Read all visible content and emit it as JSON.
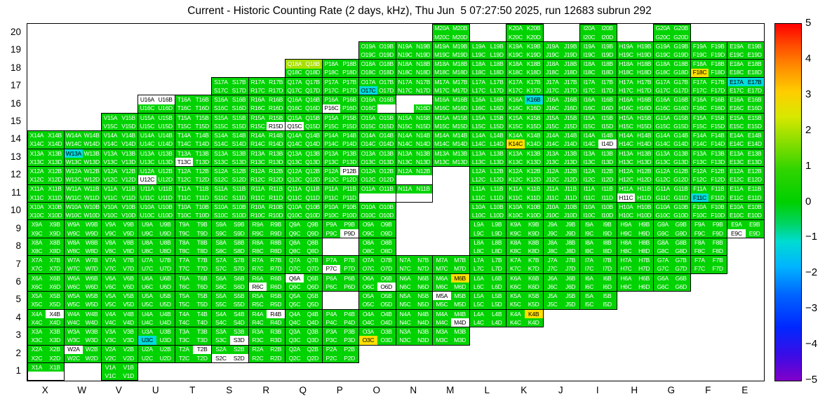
{
  "chart_data": {
    "type": "heatmap",
    "title": "Current - Historic Counting Rate (2 days, kHz), Thu Jun  5 07:27:50 2025, run 12683 subrun 292",
    "rows": [
      "20",
      "19",
      "18",
      "17",
      "16",
      "15",
      "14",
      "13",
      "12",
      "11",
      "10",
      "9",
      "8",
      "7",
      "6",
      "5",
      "4",
      "3",
      "2",
      "1"
    ],
    "columns": [
      "X",
      "W",
      "V",
      "U",
      "T",
      "S",
      "R",
      "Q",
      "P",
      "O",
      "N",
      "M",
      "L",
      "K",
      "J",
      "I",
      "H",
      "G",
      "F",
      "E"
    ],
    "module_layout": "each cell holds 4 modules: A,B on top row and C,D on bottom row; label = column+row+module",
    "value_scale": {
      "min": -5,
      "max": 5,
      "ticks": [
        5,
        4,
        3,
        2,
        1,
        0,
        -1,
        -2,
        -3,
        -4,
        -5
      ]
    },
    "palette": {
      "g": {
        "bg": "#00d300",
        "fg": "#ffffff",
        "approx_value": 0.5
      },
      "G": {
        "bg": "#a9e000",
        "fg": "#ffffff",
        "approx_value": 1.8
      },
      "y": {
        "bg": "#ffe000",
        "fg": "#000000",
        "approx_value": 2.8
      },
      "c": {
        "bg": "#00dcdc",
        "fg": "#000000",
        "approx_value": -1.2
      },
      "w": {
        "bg": "#ffffff",
        "fg": "#000000",
        "approx_value": null
      },
      "x": {
        "bg": "#ffffff",
        "fg": "#000000",
        "approx_value": null
      }
    },
    "colorbar": {
      "tick_labels": [
        "5",
        "4",
        "3",
        "2",
        "1",
        "0",
        "−1",
        "−2",
        "−3",
        "−4",
        "−5"
      ],
      "gradient": [
        {
          "pos": 0,
          "color": "#ff0000"
        },
        {
          "pos": 6,
          "color": "#ff4b00"
        },
        {
          "pos": 12,
          "color": "#ff8c00"
        },
        {
          "pos": 19,
          "color": "#ffcd00"
        },
        {
          "pos": 26,
          "color": "#d8e800"
        },
        {
          "pos": 33,
          "color": "#8ade00"
        },
        {
          "pos": 41,
          "color": "#2fd400"
        },
        {
          "pos": 50,
          "color": "#00d000"
        },
        {
          "pos": 56,
          "color": "#00d464"
        },
        {
          "pos": 61,
          "color": "#00dcd2"
        },
        {
          "pos": 68,
          "color": "#00b4ff"
        },
        {
          "pos": 76,
          "color": "#0064ff"
        },
        {
          "pos": 85,
          "color": "#0028ff"
        },
        {
          "pos": 93,
          "color": "#3c0ce6"
        },
        {
          "pos": 100,
          "color": "#8200c8"
        }
      ]
    },
    "cells": [
      [
        "M",
        20,
        "gggg"
      ],
      [
        "K",
        20,
        "gggg"
      ],
      [
        "I",
        20,
        "gggg"
      ],
      [
        "G",
        20,
        "gggg"
      ],
      [
        "O",
        19,
        "gggg"
      ],
      [
        "N",
        19,
        "gggg"
      ],
      [
        "M",
        19,
        "gggg"
      ],
      [
        "L",
        19,
        "gggg"
      ],
      [
        "K",
        19,
        "gggg"
      ],
      [
        "J",
        19,
        "gggg"
      ],
      [
        "I",
        19,
        "gggg"
      ],
      [
        "H",
        19,
        "gggg"
      ],
      [
        "G",
        19,
        "gggg"
      ],
      [
        "F",
        19,
        "gggg"
      ],
      [
        "E",
        19,
        "gggg"
      ],
      [
        "Q",
        18,
        "GGgg"
      ],
      [
        "P",
        18,
        "gggg"
      ],
      [
        "O",
        18,
        "gggg"
      ],
      [
        "N",
        18,
        "gggg"
      ],
      [
        "M",
        18,
        "gggg"
      ],
      [
        "L",
        18,
        "gggg"
      ],
      [
        "K",
        18,
        "gggg"
      ],
      [
        "J",
        18,
        "gggg"
      ],
      [
        "I",
        18,
        "gggg"
      ],
      [
        "H",
        18,
        "gggg"
      ],
      [
        "G",
        18,
        "gggg"
      ],
      [
        "F",
        18,
        "ggyg"
      ],
      [
        "E",
        18,
        "gggg"
      ],
      [
        "S",
        17,
        "gggg"
      ],
      [
        "R",
        17,
        "gggg"
      ],
      [
        "Q",
        17,
        "gggg"
      ],
      [
        "P",
        17,
        "gggg"
      ],
      [
        "O",
        17,
        "ggcg"
      ],
      [
        "N",
        17,
        "gggg"
      ],
      [
        "M",
        17,
        "gggg"
      ],
      [
        "L",
        17,
        "gggg"
      ],
      [
        "K",
        17,
        "gggg"
      ],
      [
        "J",
        17,
        "gggg"
      ],
      [
        "I",
        17,
        "gggg"
      ],
      [
        "H",
        17,
        "gggg"
      ],
      [
        "G",
        17,
        "gggg"
      ],
      [
        "F",
        17,
        "gggg"
      ],
      [
        "E",
        17,
        "ccgg"
      ],
      [
        "U",
        16,
        "wwgg"
      ],
      [
        "T",
        16,
        "gggg"
      ],
      [
        "S",
        16,
        "gggg"
      ],
      [
        "R",
        16,
        "gggg"
      ],
      [
        "Q",
        16,
        "gggg"
      ],
      [
        "P",
        16,
        "ggwg"
      ],
      [
        "O",
        16,
        "gggx"
      ],
      [
        "N",
        16,
        "xxxg"
      ],
      [
        "M",
        16,
        "gggg"
      ],
      [
        "L",
        16,
        "gggg"
      ],
      [
        "K",
        16,
        "gcgg"
      ],
      [
        "J",
        16,
        "gggg"
      ],
      [
        "I",
        16,
        "gggg"
      ],
      [
        "H",
        16,
        "gggg"
      ],
      [
        "G",
        16,
        "gggg"
      ],
      [
        "F",
        16,
        "gggg"
      ],
      [
        "E",
        16,
        "gggg"
      ],
      [
        "V",
        15,
        "gggg"
      ],
      [
        "U",
        15,
        "gggg"
      ],
      [
        "T",
        15,
        "gggg"
      ],
      [
        "S",
        15,
        "gggg"
      ],
      [
        "R",
        15,
        "gggw"
      ],
      [
        "Q",
        15,
        "ggwg"
      ],
      [
        "P",
        15,
        "gggg"
      ],
      [
        "O",
        15,
        "gggg"
      ],
      [
        "N",
        15,
        "gggg"
      ],
      [
        "M",
        15,
        "gggg"
      ],
      [
        "L",
        15,
        "gggg"
      ],
      [
        "K",
        15,
        "gggg"
      ],
      [
        "J",
        15,
        "gggg"
      ],
      [
        "I",
        15,
        "gggg"
      ],
      [
        "H",
        15,
        "gggg"
      ],
      [
        "G",
        15,
        "gggg"
      ],
      [
        "F",
        15,
        "gggg"
      ],
      [
        "E",
        15,
        "gggg"
      ],
      [
        "X",
        14,
        "gggg"
      ],
      [
        "W",
        14,
        "gggg"
      ],
      [
        "V",
        14,
        "gggg"
      ],
      [
        "U",
        14,
        "gggg"
      ],
      [
        "T",
        14,
        "gggg"
      ],
      [
        "S",
        14,
        "gggg"
      ],
      [
        "R",
        14,
        "gggg"
      ],
      [
        "Q",
        14,
        "gggg"
      ],
      [
        "P",
        14,
        "gggg"
      ],
      [
        "O",
        14,
        "gggg"
      ],
      [
        "N",
        14,
        "gggg"
      ],
      [
        "M",
        14,
        "gggg"
      ],
      [
        "L",
        14,
        "gggg"
      ],
      [
        "K",
        14,
        "ggyg"
      ],
      [
        "J",
        14,
        "gggg"
      ],
      [
        "I",
        14,
        "gggw"
      ],
      [
        "H",
        14,
        "gggg"
      ],
      [
        "G",
        14,
        "gggg"
      ],
      [
        "F",
        14,
        "gggg"
      ],
      [
        "E",
        14,
        "gggg"
      ],
      [
        "X",
        13,
        "gggg"
      ],
      [
        "W",
        13,
        "cggg"
      ],
      [
        "V",
        13,
        "gggg"
      ],
      [
        "U",
        13,
        "gggg"
      ],
      [
        "T",
        13,
        "ggwg"
      ],
      [
        "S",
        13,
        "gggg"
      ],
      [
        "R",
        13,
        "gggg"
      ],
      [
        "Q",
        13,
        "gggg"
      ],
      [
        "P",
        13,
        "gggg"
      ],
      [
        "O",
        13,
        "gggg"
      ],
      [
        "N",
        13,
        "gggg"
      ],
      [
        "M",
        13,
        "gggg"
      ],
      [
        "L",
        13,
        "gggg"
      ],
      [
        "K",
        13,
        "gggg"
      ],
      [
        "J",
        13,
        "gggg"
      ],
      [
        "I",
        13,
        "gggg"
      ],
      [
        "H",
        13,
        "gggg"
      ],
      [
        "G",
        13,
        "gggg"
      ],
      [
        "F",
        13,
        "gggg"
      ],
      [
        "E",
        13,
        "gggg"
      ],
      [
        "X",
        12,
        "gggg"
      ],
      [
        "W",
        12,
        "gggg"
      ],
      [
        "V",
        12,
        "gggg"
      ],
      [
        "U",
        12,
        "ggwg"
      ],
      [
        "T",
        12,
        "gggg"
      ],
      [
        "S",
        12,
        "gggg"
      ],
      [
        "R",
        12,
        "gggg"
      ],
      [
        "Q",
        12,
        "gggg"
      ],
      [
        "P",
        12,
        "gwgg"
      ],
      [
        "O",
        12,
        "gggg"
      ],
      [
        "N",
        12,
        "ggxx"
      ],
      [
        "L",
        12,
        "gggg"
      ],
      [
        "K",
        12,
        "gggg"
      ],
      [
        "J",
        12,
        "gggg"
      ],
      [
        "I",
        12,
        "gggg"
      ],
      [
        "H",
        12,
        "gggg"
      ],
      [
        "G",
        12,
        "gggg"
      ],
      [
        "F",
        12,
        "gggg"
      ],
      [
        "E",
        12,
        "gggg"
      ],
      [
        "X",
        11,
        "gggg"
      ],
      [
        "W",
        11,
        "gggg"
      ],
      [
        "V",
        11,
        "gggg"
      ],
      [
        "U",
        11,
        "gggg"
      ],
      [
        "T",
        11,
        "gggg"
      ],
      [
        "S",
        11,
        "gggg"
      ],
      [
        "R",
        11,
        "gggg"
      ],
      [
        "Q",
        11,
        "gggg"
      ],
      [
        "P",
        11,
        "gggg"
      ],
      [
        "O",
        11,
        "ggxx"
      ],
      [
        "N",
        11,
        "ggxx"
      ],
      [
        "L",
        11,
        "gggg"
      ],
      [
        "K",
        11,
        "gggg"
      ],
      [
        "J",
        11,
        "gggg"
      ],
      [
        "I",
        11,
        "gggg"
      ],
      [
        "H",
        11,
        "ggwg"
      ],
      [
        "G",
        11,
        "gggg"
      ],
      [
        "F",
        11,
        "ggcg"
      ],
      [
        "E",
        11,
        "gggg"
      ],
      [
        "X",
        10,
        "gggg"
      ],
      [
        "W",
        10,
        "gggg"
      ],
      [
        "V",
        10,
        "gggg"
      ],
      [
        "U",
        10,
        "gggg"
      ],
      [
        "T",
        10,
        "gggg"
      ],
      [
        "S",
        10,
        "gggg"
      ],
      [
        "R",
        10,
        "gggg"
      ],
      [
        "Q",
        10,
        "gggg"
      ],
      [
        "P",
        10,
        "gggg"
      ],
      [
        "O",
        10,
        "gggg"
      ],
      [
        "L",
        10,
        "gggg"
      ],
      [
        "K",
        10,
        "gggg"
      ],
      [
        "J",
        10,
        "gggg"
      ],
      [
        "I",
        10,
        "gggg"
      ],
      [
        "H",
        10,
        "gggg"
      ],
      [
        "G",
        10,
        "gggg"
      ],
      [
        "F",
        10,
        "gggg"
      ],
      [
        "E",
        10,
        "gggg"
      ],
      [
        "X",
        9,
        "gggg"
      ],
      [
        "W",
        9,
        "gggg"
      ],
      [
        "V",
        9,
        "gggg"
      ],
      [
        "U",
        9,
        "gggg"
      ],
      [
        "T",
        9,
        "gggg"
      ],
      [
        "S",
        9,
        "gggg"
      ],
      [
        "R",
        9,
        "gggg"
      ],
      [
        "Q",
        9,
        "gggg"
      ],
      [
        "P",
        9,
        "gggw"
      ],
      [
        "O",
        9,
        "gggg"
      ],
      [
        "L",
        9,
        "gggg"
      ],
      [
        "K",
        9,
        "gggg"
      ],
      [
        "J",
        9,
        "gggg"
      ],
      [
        "I",
        9,
        "gggg"
      ],
      [
        "H",
        9,
        "gggg"
      ],
      [
        "G",
        9,
        "gggg"
      ],
      [
        "F",
        9,
        "gggg"
      ],
      [
        "E",
        9,
        "ggwg"
      ],
      [
        "X",
        8,
        "gggg"
      ],
      [
        "W",
        8,
        "gggg"
      ],
      [
        "V",
        8,
        "gggg"
      ],
      [
        "U",
        8,
        "gggg"
      ],
      [
        "T",
        8,
        "gggg"
      ],
      [
        "S",
        8,
        "gggg"
      ],
      [
        "R",
        8,
        "gggg"
      ],
      [
        "Q",
        8,
        "gggg"
      ],
      [
        "O",
        8,
        "gggg"
      ],
      [
        "L",
        8,
        "gggg"
      ],
      [
        "K",
        8,
        "gggg"
      ],
      [
        "J",
        8,
        "gggg"
      ],
      [
        "I",
        8,
        "gggg"
      ],
      [
        "H",
        8,
        "gggg"
      ],
      [
        "G",
        8,
        "gggg"
      ],
      [
        "F",
        8,
        "gggg"
      ],
      [
        "X",
        7,
        "gggg"
      ],
      [
        "W",
        7,
        "gggg"
      ],
      [
        "V",
        7,
        "gggg"
      ],
      [
        "U",
        7,
        "gggg"
      ],
      [
        "T",
        7,
        "gggg"
      ],
      [
        "S",
        7,
        "gggg"
      ],
      [
        "R",
        7,
        "gggg"
      ],
      [
        "Q",
        7,
        "gggg"
      ],
      [
        "P",
        7,
        "ggwg"
      ],
      [
        "O",
        7,
        "gggg"
      ],
      [
        "N",
        7,
        "gggg"
      ],
      [
        "M",
        7,
        "gggg"
      ],
      [
        "L",
        7,
        "gggg"
      ],
      [
        "K",
        7,
        "gggg"
      ],
      [
        "J",
        7,
        "gggg"
      ],
      [
        "I",
        7,
        "gggg"
      ],
      [
        "H",
        7,
        "gggg"
      ],
      [
        "G",
        7,
        "gggg"
      ],
      [
        "F",
        7,
        "gggg"
      ],
      [
        "X",
        6,
        "gggg"
      ],
      [
        "W",
        6,
        "gggg"
      ],
      [
        "V",
        6,
        "gggg"
      ],
      [
        "U",
        6,
        "gggg"
      ],
      [
        "T",
        6,
        "gggg"
      ],
      [
        "S",
        6,
        "gggg"
      ],
      [
        "R",
        6,
        "ggwg"
      ],
      [
        "Q",
        6,
        "wggg"
      ],
      [
        "P",
        6,
        "gggg"
      ],
      [
        "O",
        6,
        "gggw"
      ],
      [
        "N",
        6,
        "gggg"
      ],
      [
        "M",
        6,
        "gygg"
      ],
      [
        "L",
        6,
        "gggg"
      ],
      [
        "K",
        6,
        "gggg"
      ],
      [
        "J",
        6,
        "gggg"
      ],
      [
        "I",
        6,
        "gggg"
      ],
      [
        "H",
        6,
        "gggg"
      ],
      [
        "G",
        6,
        "gggg"
      ],
      [
        "X",
        5,
        "gggg"
      ],
      [
        "W",
        5,
        "gggg"
      ],
      [
        "V",
        5,
        "gggg"
      ],
      [
        "U",
        5,
        "gggg"
      ],
      [
        "T",
        5,
        "gggg"
      ],
      [
        "S",
        5,
        "gggg"
      ],
      [
        "R",
        5,
        "gggg"
      ],
      [
        "Q",
        5,
        "gggg"
      ],
      [
        "O",
        5,
        "gggg"
      ],
      [
        "N",
        5,
        "gggg"
      ],
      [
        "M",
        5,
        "wggg"
      ],
      [
        "L",
        5,
        "gggg"
      ],
      [
        "K",
        5,
        "gggg"
      ],
      [
        "J",
        5,
        "gggg"
      ],
      [
        "I",
        5,
        "gggg"
      ],
      [
        "X",
        4,
        "gwgg"
      ],
      [
        "W",
        4,
        "gggg"
      ],
      [
        "V",
        4,
        "gggg"
      ],
      [
        "U",
        4,
        "gggg"
      ],
      [
        "T",
        4,
        "gggg"
      ],
      [
        "S",
        4,
        "gggg"
      ],
      [
        "R",
        4,
        "gwgg"
      ],
      [
        "Q",
        4,
        "gggg"
      ],
      [
        "P",
        4,
        "gggg"
      ],
      [
        "O",
        4,
        "gggg"
      ],
      [
        "N",
        4,
        "gggg"
      ],
      [
        "M",
        4,
        "gggw"
      ],
      [
        "L",
        4,
        "gggg"
      ],
      [
        "K",
        4,
        "gygg"
      ],
      [
        "X",
        3,
        "gggg"
      ],
      [
        "W",
        3,
        "gggg"
      ],
      [
        "V",
        3,
        "gggg"
      ],
      [
        "U",
        3,
        "ggcg"
      ],
      [
        "T",
        3,
        "gggg"
      ],
      [
        "S",
        3,
        "gggw"
      ],
      [
        "R",
        3,
        "gggg"
      ],
      [
        "Q",
        3,
        "gggg"
      ],
      [
        "P",
        3,
        "gggg"
      ],
      [
        "O",
        3,
        "ggyg"
      ],
      [
        "N",
        3,
        "gggg"
      ],
      [
        "M",
        3,
        "gggg"
      ],
      [
        "X",
        2,
        "gggg"
      ],
      [
        "W",
        2,
        "wggg"
      ],
      [
        "V",
        2,
        "gggg"
      ],
      [
        "U",
        2,
        "gggg"
      ],
      [
        "T",
        2,
        "gwgg"
      ],
      [
        "S",
        2,
        "ggww"
      ],
      [
        "R",
        2,
        "gggg"
      ],
      [
        "Q",
        2,
        "gggg"
      ],
      [
        "P",
        2,
        "gggg"
      ],
      [
        "X",
        1,
        "ggxx"
      ],
      [
        "V",
        1,
        "gggg"
      ]
    ]
  }
}
